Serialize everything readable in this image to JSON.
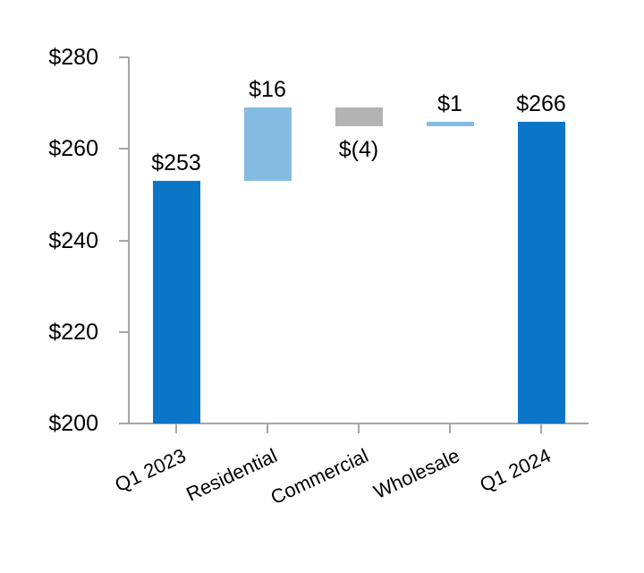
{
  "chart_data": {
    "type": "bar",
    "subtype": "waterfall",
    "title": "",
    "categories": [
      "Q1 2023",
      "Residential",
      "Commercial",
      "Wholesale",
      "Q1 2024"
    ],
    "bars": [
      {
        "category": "Q1 2023",
        "label": "$253",
        "value": 253,
        "start": 200,
        "end": 253,
        "role": "total",
        "label_position": "above"
      },
      {
        "category": "Residential",
        "label": "$16",
        "value": 16,
        "start": 253,
        "end": 269,
        "role": "increase",
        "label_position": "above"
      },
      {
        "category": "Commercial",
        "label": "$(4)",
        "value": -4,
        "start": 269,
        "end": 265,
        "role": "decrease",
        "label_position": "below"
      },
      {
        "category": "Wholesale",
        "label": "$1",
        "value": 1,
        "start": 265,
        "end": 266,
        "role": "increase",
        "label_position": "above"
      },
      {
        "category": "Q1 2024",
        "label": "$266",
        "value": 266,
        "start": 200,
        "end": 266,
        "role": "total",
        "label_position": "above"
      }
    ],
    "xlabel": "",
    "ylabel": "",
    "ylim": [
      200,
      280
    ],
    "ytick_values": [
      280,
      260,
      240,
      220,
      200
    ],
    "ytick_labels": [
      "$280",
      "$260",
      "$240",
      "$220",
      "$200"
    ],
    "grid": false,
    "legend": false,
    "colors": {
      "total": "#0b76c8",
      "increase": "#85bbe1",
      "decrease": "#b3b3b3",
      "axis": "#a6a6a6",
      "text": "#000000"
    }
  }
}
